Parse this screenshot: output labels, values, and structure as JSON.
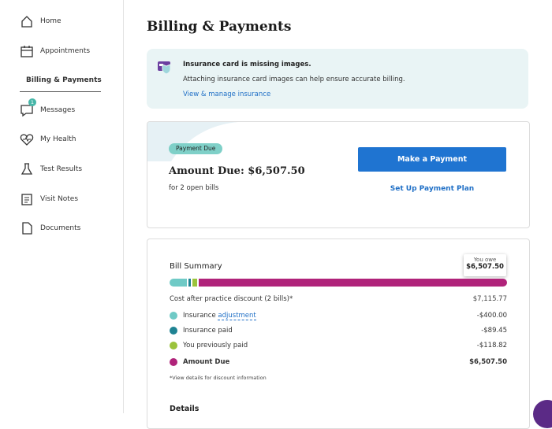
{
  "sidebar": {
    "items": [
      {
        "label": "Home"
      },
      {
        "label": "Appointments"
      },
      {
        "label": "Billing & Payments",
        "active": true
      },
      {
        "label": "Messages",
        "badge": "1"
      },
      {
        "label": "My Health"
      },
      {
        "label": "Test Results"
      },
      {
        "label": "Visit Notes"
      },
      {
        "label": "Documents"
      }
    ]
  },
  "header": {
    "title": "Billing & Payments"
  },
  "alert": {
    "title": "Insurance card is missing images.",
    "text": "Attaching insurance card images can help ensure accurate billing.",
    "link": "View & manage insurance"
  },
  "payment": {
    "badge": "Payment Due",
    "amount": "Amount Due: $6,507.50",
    "subtext": "for 2 open bills",
    "button": "Make a Payment",
    "link": "Set Up Payment Plan"
  },
  "summary": {
    "title": "Bill Summary",
    "tooltip_label": "You owe",
    "tooltip_value": "$6,507.50",
    "total_label": "Cost after practice discount (2 bills)*",
    "total_value": "$7,115.77",
    "items": [
      {
        "label": "Insurance",
        "link": "adjustment",
        "value": "-$400.00",
        "color": "#6fcac6"
      },
      {
        "label": "Insurance paid",
        "value": "-$89.45",
        "color": "#1f8393"
      },
      {
        "label": "You previously paid",
        "value": "-$118.82",
        "color": "#9bc33c"
      },
      {
        "label": "Amount Due",
        "value": "$6,507.50",
        "color": "#b0237a",
        "bold": true
      }
    ],
    "footnote": "*View details for discount information",
    "details": "Details"
  }
}
